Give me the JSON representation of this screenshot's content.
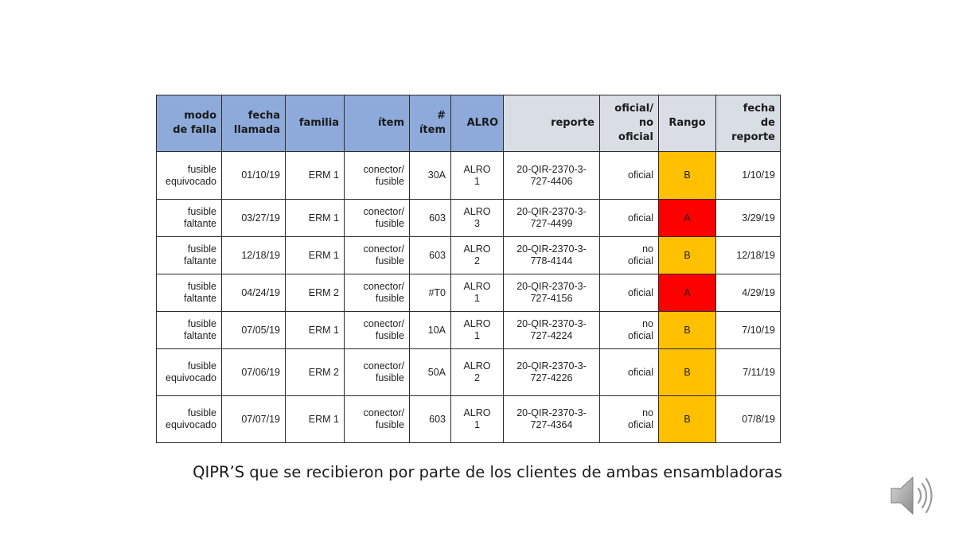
{
  "table": {
    "headers": [
      "modo\nde falla",
      "fecha\nllamada",
      "familia",
      "ítem",
      "#\nítem",
      "ALRO",
      "reporte",
      "oficial/\nno oficial",
      "Rango",
      "fecha\nde reporte"
    ],
    "rows": [
      [
        "fusible\nequivocado",
        "01/10/19",
        "ERM 1",
        "conector/\nfusible",
        "30A",
        "ALRO\n1",
        "20-QIR-2370-3-\n727-4406",
        "oficial",
        "B",
        "1/10/19"
      ],
      [
        "fusible\nfaltante",
        "03/27/19",
        "ERM 1",
        "conector/\nfusible",
        "603",
        "ALRO\n3",
        "20-QIR-2370-3-\n727-4499",
        "oficial",
        "A",
        "3/29/19"
      ],
      [
        "fusible\nfaltante",
        "12/18/19",
        "ERM 1",
        "conector/\nfusible",
        "603",
        "ALRO\n2",
        "20-QIR-2370-3-\n778-4144",
        "no\noficial",
        "B",
        "12/18/19"
      ],
      [
        "fusible\nfaltante",
        "04/24/19",
        "ERM 2",
        "conector/\nfusible",
        "#T0",
        "ALRO\n1",
        "20-QIR-2370-3-\n727-4156",
        "oficial",
        "A",
        "4/29/19"
      ],
      [
        "fusible\nfaltante",
        "07/05/19",
        "ERM 1",
        "conector/\nfusible",
        "10A",
        "ALRO\n1",
        "20-QIR-2370-3-\n727-4224",
        "no\noficial",
        "B",
        "7/10/19"
      ],
      [
        "fusible\nequivocado",
        "07/06/19",
        "ERM 2",
        "conector/\nfusible",
        "50A",
        "ALRO\n2",
        "20-QIR-2370-3-\n727-4226",
        "oficial",
        "B",
        "7/11/19"
      ],
      [
        "fusible\nequivocado",
        "07/07/19",
        "ERM 1",
        "conector/\nfusible",
        "603",
        "ALRO\n1",
        "20-QIR-2370-3-\n727-4364",
        "no\noficial",
        "B",
        "07/8/19"
      ]
    ]
  },
  "caption": "QIPR’S que se recibieron por parte de los clientes de ambas ensambladoras",
  "colors": {
    "header_blue": "#8eaadb",
    "header_grey": "#d9dee5",
    "rango_A": "#ff0000",
    "rango_B": "#ffc000"
  },
  "icons": {
    "audio": "speaker-icon"
  }
}
